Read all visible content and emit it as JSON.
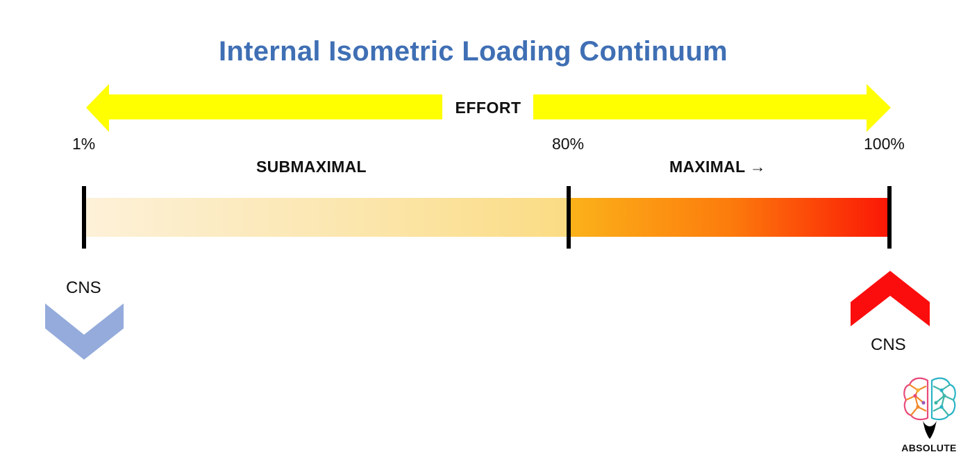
{
  "title": "Internal Isometric Loading Continuum",
  "effort_label": "EFFORT",
  "percent_markers": [
    "1%",
    "80%",
    "100%"
  ],
  "zones": {
    "submaximal": "SUBMAXIMAL",
    "maximal": "MAXIMAL →"
  },
  "cns": {
    "left_label": "CNS",
    "right_label": "CNS",
    "left_direction": "down",
    "right_direction": "up"
  },
  "logo_text": "ABSOLUTE",
  "colors": {
    "title": "#3f6fb4",
    "effort_arrow": "#ffff00",
    "submaximal_start": "#fdf1d8",
    "submaximal_end": "#fbdc84",
    "maximal_start": "#fbb21a",
    "maximal_end": "#fb1705",
    "cns_down": "#94abdb",
    "cns_up": "#fc0d0d"
  },
  "icons": [
    "effort-double-arrow-icon",
    "chevron-down-icon",
    "chevron-up-icon",
    "brain-logo-icon"
  ]
}
